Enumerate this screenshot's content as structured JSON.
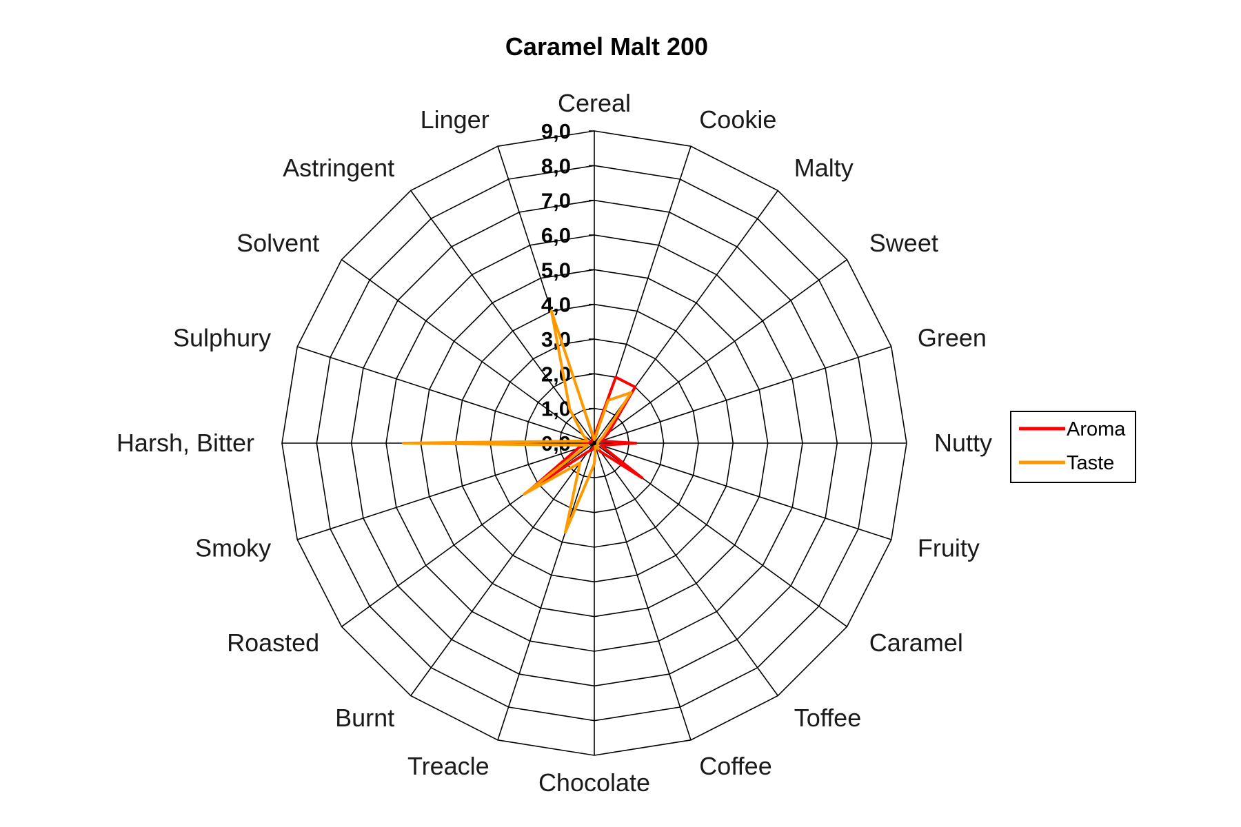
{
  "chart_data": {
    "type": "radar",
    "title": "Caramel Malt 200",
    "axes": [
      "Cereal",
      "Cookie",
      "Malty",
      "Sweet",
      "Green",
      "Nutty",
      "Fruity",
      "Caramel",
      "Toffee",
      "Coffee",
      "Chocolate",
      "Treacle",
      "Burnt",
      "Roasted",
      "Smoky",
      "Harsh, Bitter",
      "Sulphury",
      "Solvent",
      "Astringent",
      "Linger"
    ],
    "ticks": [
      "0,0",
      "1,0",
      "2,0",
      "3,0",
      "4,0",
      "5,0",
      "6,0",
      "7,0",
      "8,0",
      "9,0"
    ],
    "rmin": 0,
    "rmax": 9,
    "grid": true,
    "legend_position": "right",
    "series": [
      {
        "name": "Aroma",
        "color": "#ff0000",
        "values": [
          0.2,
          2.0,
          2.0,
          0.5,
          0.2,
          1.2,
          0.2,
          1.7,
          0.3,
          0.1,
          0.1,
          0.2,
          0.3,
          2.3,
          0.5,
          0.3,
          0.1,
          0.1,
          0.1,
          0.2
        ]
      },
      {
        "name": "Taste",
        "color": "#ff9900",
        "values": [
          0.1,
          1.3,
          1.8,
          0.3,
          0.1,
          0.1,
          0.1,
          0.1,
          0.2,
          0.1,
          0.6,
          2.7,
          0.7,
          2.5,
          0.2,
          5.5,
          0.2,
          0.4,
          1.2,
          4.0
        ]
      }
    ]
  }
}
